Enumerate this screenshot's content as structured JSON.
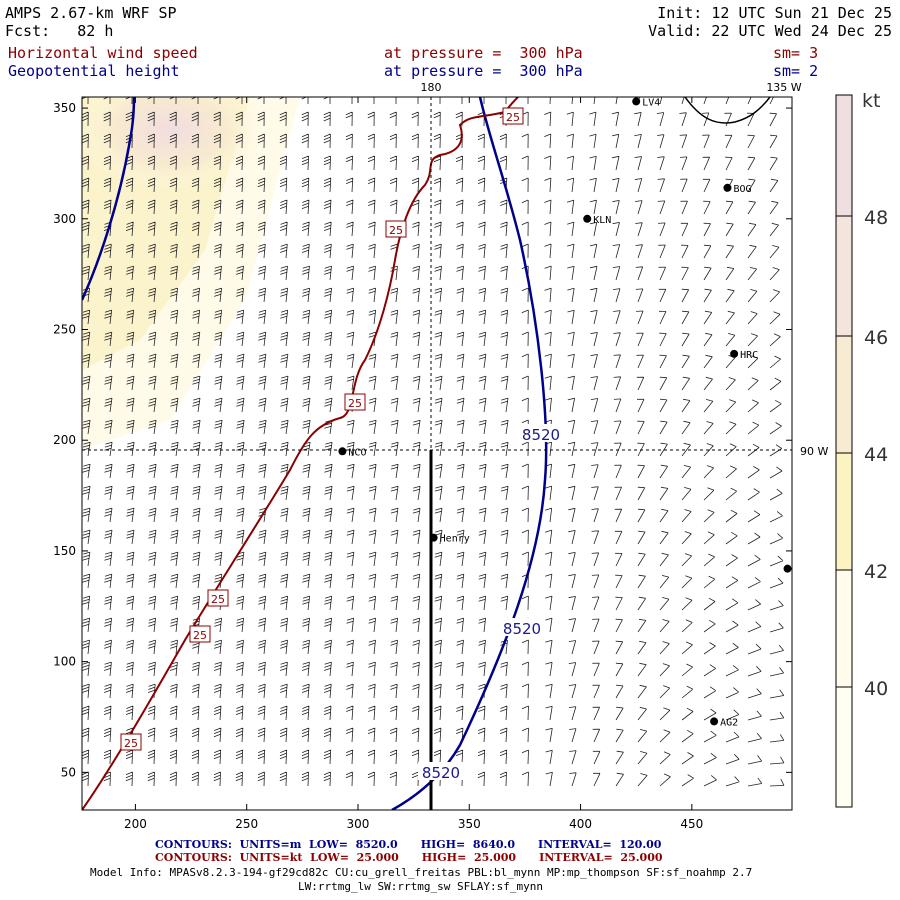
{
  "header": {
    "model": "AMPS 2.67-km WRF SP",
    "fcst": "Fcst:   82 h",
    "init": "Init: 12 UTC Sun 21 Dec 25",
    "valid": "Valid: 22 UTC Wed 24 Dec 25",
    "field1": "Horizontal wind speed",
    "field2": "Geopotential height",
    "pressure1": "at pressure =  300 hPa",
    "pressure2": "at pressure =  300 hPa",
    "sm1": "sm= 3",
    "sm2": "sm= 2"
  },
  "map": {
    "lon_top_label": "180",
    "lon_topright_label": "135 W",
    "lon_right_label": "90 W",
    "x_ticks": [
      "200",
      "250",
      "300",
      "350",
      "400",
      "450"
    ],
    "y_ticks": [
      "350",
      "300",
      "250",
      "200",
      "150",
      "100",
      "50"
    ],
    "xlim": [
      176,
      495
    ],
    "ylim": [
      33,
      355
    ],
    "height_contour_labels": [
      "8520",
      "8520",
      "8520"
    ],
    "wind_contour_labels": [
      "25",
      "25",
      "25",
      "25",
      "25",
      "25"
    ],
    "stations": [
      {
        "name": "LV4",
        "x": 425,
        "y": 353
      },
      {
        "name": "BOG",
        "x": 466,
        "y": 314
      },
      {
        "name": "KLN",
        "x": 403,
        "y": 300
      },
      {
        "name": "HRC",
        "x": 469,
        "y": 239
      },
      {
        "name": "NCO",
        "x": 293,
        "y": 195
      },
      {
        "name": "Henry",
        "x": 334,
        "y": 156
      },
      {
        "name": "",
        "x": 493,
        "y": 142
      },
      {
        "name": "AG2",
        "x": 460,
        "y": 73
      }
    ],
    "colors": {
      "height": "#00008b",
      "wind": "#8b0000"
    }
  },
  "colorbar": {
    "unit": "kt",
    "labels": [
      "48",
      "46",
      "44",
      "42",
      "40"
    ],
    "colors": [
      "#fffef2",
      "#fbf3c2",
      "#f7ecd3",
      "#f0dfe1"
    ]
  },
  "footer": {
    "line1": {
      "c": "CONTOURS:",
      "u": "UNITS=m",
      "l": "LOW=",
      "lv": "8520.0",
      "h": "HIGH=",
      "hv": "8640.0",
      "i": "INTERVAL=",
      "iv": "120.00"
    },
    "line2": {
      "c": "CONTOURS:",
      "u": "UNITS=kt",
      "l": "LOW=",
      "lv": "25.000",
      "h": "HIGH=",
      "hv": "25.000",
      "i": "INTERVAL=",
      "iv": "25.000"
    },
    "model_info_1": "Model Info: MPASv8.2.3-194-gf29cd82c CU:cu_grell_freitas PBL:bl_mynn MP:mp_thompson SF:sf_noahmp 2.7",
    "model_info_2": "LW:rrtmg_lw SW:rrtmg_sw SFLAY:sf_mynn"
  }
}
